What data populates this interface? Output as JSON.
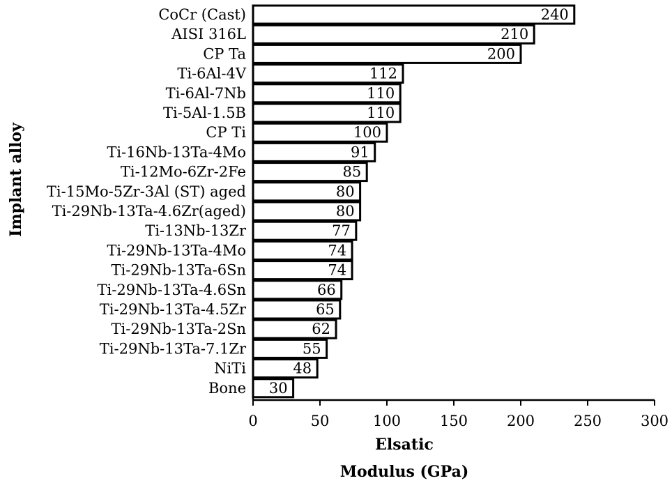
{
  "chart_data": {
    "type": "bar",
    "orientation": "horizontal",
    "categories": [
      "CoCr (Cast)",
      "AISI 316L",
      "CP Ta",
      "Ti-6Al-4V",
      "Ti-6Al-7Nb",
      "Ti-5Al-1.5B",
      "CP Ti",
      "Ti-16Nb-13Ta-4Mo",
      "Ti-12Mo-6Zr-2Fe",
      "Ti-15Mo-5Zr-3Al (ST) aged",
      "Ti-29Nb-13Ta-4.6Zr(aged)",
      "Ti-13Nb-13Zr",
      "Ti-29Nb-13Ta-4Mo",
      "Ti-29Nb-13Ta-6Sn",
      "Ti-29Nb-13Ta-4.6Sn",
      "Ti-29Nb-13Ta-4.5Zr",
      "Ti-29Nb-13Ta-2Sn",
      "Ti-29Nb-13Ta-7.1Zr",
      "NiTi",
      "Bone"
    ],
    "values": [
      240,
      210,
      200,
      112,
      110,
      110,
      100,
      91,
      85,
      80,
      80,
      77,
      74,
      74,
      66,
      65,
      62,
      55,
      48,
      30
    ],
    "value_labels": [
      "240",
      "210",
      "200",
      "112",
      "110",
      "110",
      "100",
      "91",
      "85",
      "80",
      "80",
      "77",
      "74",
      "74",
      "66",
      "65",
      "62",
      "55",
      "48",
      "30"
    ],
    "xlabel_line1": "Elsatic",
    "xlabel_line2": "Modulus (GPa)",
    "ylabel": "Implant alloy",
    "xlim": [
      0,
      300
    ],
    "xticks": [
      0,
      50,
      100,
      150,
      200,
      250,
      300
    ],
    "xtick_labels": [
      "0",
      "50",
      "100",
      "150",
      "200",
      "250",
      "300"
    ],
    "grid": false,
    "bar_fill": "#ffffff",
    "bar_edge": "#000000"
  }
}
